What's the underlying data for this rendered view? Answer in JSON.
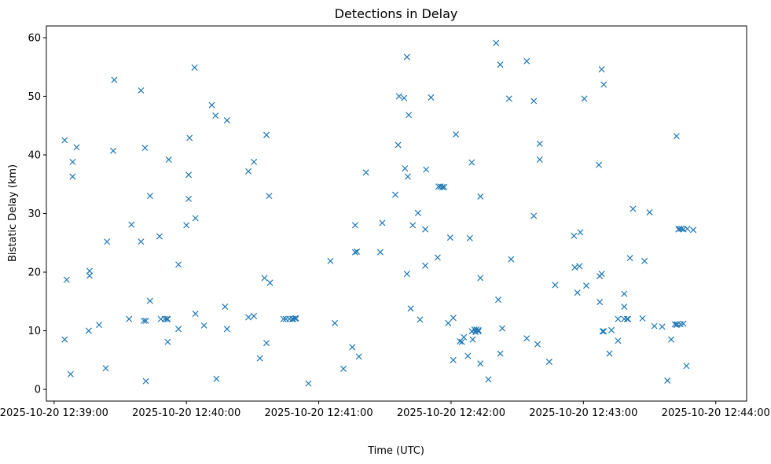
{
  "chart_data": {
    "type": "scatter",
    "title": "Detections in Delay",
    "xlabel": "Time (UTC)",
    "ylabel": "Bistatic Delay (km)",
    "marker": "x",
    "color": "#1f77b4",
    "grid": false,
    "x_unit": "seconds since 2025-10-20 12:39:00",
    "xlim": [
      -3.5,
      314
    ],
    "ylim": [
      -2,
      62
    ],
    "xticks": [
      {
        "value": 0,
        "label": "2025-10-20 12:39:00"
      },
      {
        "value": 60,
        "label": "2025-10-20 12:40:00"
      },
      {
        "value": 120,
        "label": "2025-10-20 12:41:00"
      },
      {
        "value": 180,
        "label": "2025-10-20 12:42:00"
      },
      {
        "value": 240,
        "label": "2025-10-20 12:43:00"
      },
      {
        "value": 300,
        "label": "2025-10-20 12:44:00"
      }
    ],
    "yticks": [
      {
        "value": 0,
        "label": "0"
      },
      {
        "value": 10,
        "label": "10"
      },
      {
        "value": 20,
        "label": "20"
      },
      {
        "value": 30,
        "label": "30"
      },
      {
        "value": 40,
        "label": "40"
      },
      {
        "value": 50,
        "label": "50"
      },
      {
        "value": 60,
        "label": "60"
      }
    ],
    "points": [
      [
        4.8,
        42.5
      ],
      [
        4.8,
        8.5
      ],
      [
        5.7,
        18.7
      ],
      [
        7.5,
        2.6
      ],
      [
        8.4,
        38.8
      ],
      [
        8.4,
        36.3
      ],
      [
        10.2,
        41.3
      ],
      [
        15.7,
        10.0
      ],
      [
        16.1,
        20.2
      ],
      [
        16.1,
        19.4
      ],
      [
        20.4,
        11.0
      ],
      [
        23.4,
        3.6
      ],
      [
        24.0,
        25.2
      ],
      [
        26.8,
        40.7
      ],
      [
        27.3,
        52.8
      ],
      [
        34.0,
        12.0
      ],
      [
        35.1,
        28.1
      ],
      [
        39.4,
        51.0
      ],
      [
        39.4,
        25.2
      ],
      [
        40.7,
        11.7
      ],
      [
        41.2,
        41.2
      ],
      [
        41.6,
        11.7
      ],
      [
        41.6,
        1.4
      ],
      [
        43.5,
        33.0
      ],
      [
        43.5,
        15.1
      ],
      [
        47.8,
        26.1
      ],
      [
        48.4,
        12.0
      ],
      [
        50.2,
        12.0
      ],
      [
        51.1,
        12.0
      ],
      [
        51.5,
        8.1
      ],
      [
        51.5,
        12.0
      ],
      [
        52.0,
        39.2
      ],
      [
        56.4,
        21.3
      ],
      [
        56.4,
        10.3
      ],
      [
        60.0,
        28.0
      ],
      [
        61.0,
        36.6
      ],
      [
        61.0,
        32.5
      ],
      [
        61.4,
        42.9
      ],
      [
        63.7,
        54.9
      ],
      [
        64.1,
        12.9
      ],
      [
        64.1,
        29.2
      ],
      [
        68.0,
        10.9
      ],
      [
        71.5,
        48.5
      ],
      [
        73.2,
        46.7
      ],
      [
        73.6,
        1.8
      ],
      [
        77.5,
        14.1
      ],
      [
        78.4,
        10.3
      ],
      [
        78.4,
        45.9
      ],
      [
        88.1,
        37.2
      ],
      [
        88.1,
        12.3
      ],
      [
        90.6,
        38.8
      ],
      [
        90.6,
        12.5
      ],
      [
        93.3,
        5.3
      ],
      [
        95.4,
        19.0
      ],
      [
        96.3,
        7.9
      ],
      [
        96.3,
        43.4
      ],
      [
        97.5,
        33.0
      ],
      [
        97.9,
        18.2
      ],
      [
        104.0,
        12.0
      ],
      [
        105.1,
        12.0
      ],
      [
        106.7,
        12.0
      ],
      [
        108.0,
        12.0
      ],
      [
        108.4,
        12.0
      ],
      [
        109.3,
        12.1
      ],
      [
        109.7,
        12.1
      ],
      [
        115.3,
        1.0
      ],
      [
        125.3,
        21.9
      ],
      [
        127.3,
        11.3
      ],
      [
        131.2,
        3.5
      ],
      [
        135.2,
        7.2
      ],
      [
        136.5,
        23.4
      ],
      [
        136.5,
        28.0
      ],
      [
        137.3,
        23.5
      ],
      [
        138.2,
        5.6
      ],
      [
        141.4,
        37.0
      ],
      [
        147.9,
        23.4
      ],
      [
        148.8,
        28.4
      ],
      [
        154.7,
        33.2
      ],
      [
        156.0,
        41.7
      ],
      [
        156.4,
        50.0
      ],
      [
        158.7,
        49.7
      ],
      [
        159.1,
        37.7
      ],
      [
        160.0,
        56.7
      ],
      [
        160.0,
        19.7
      ],
      [
        160.4,
        36.3
      ],
      [
        160.8,
        46.8
      ],
      [
        161.7,
        13.8
      ],
      [
        162.6,
        28.0
      ],
      [
        165.0,
        30.1
      ],
      [
        165.9,
        11.9
      ],
      [
        168.3,
        27.3
      ],
      [
        168.3,
        21.1
      ],
      [
        168.7,
        37.5
      ],
      [
        170.9,
        49.8
      ],
      [
        173.9,
        22.5
      ],
      [
        174.3,
        34.6
      ],
      [
        175.2,
        34.6
      ],
      [
        176.1,
        34.5
      ],
      [
        176.9,
        34.5
      ],
      [
        178.7,
        11.3
      ],
      [
        179.6,
        25.9
      ],
      [
        181.0,
        12.2
      ],
      [
        181.0,
        5.0
      ],
      [
        182.2,
        43.5
      ],
      [
        184.0,
        8.2
      ],
      [
        184.9,
        8.1
      ],
      [
        185.8,
        8.9
      ],
      [
        187.6,
        5.7
      ],
      [
        188.5,
        25.8
      ],
      [
        189.4,
        38.7
      ],
      [
        189.4,
        9.9
      ],
      [
        189.8,
        8.5
      ],
      [
        190.6,
        10.2
      ],
      [
        191.1,
        9.8
      ],
      [
        191.5,
        10.2
      ],
      [
        192.4,
        10.1
      ],
      [
        192.4,
        9.9
      ],
      [
        193.3,
        32.9
      ],
      [
        193.3,
        19.0
      ],
      [
        193.3,
        4.4
      ],
      [
        196.9,
        1.7
      ],
      [
        200.4,
        59.1
      ],
      [
        201.4,
        15.3
      ],
      [
        202.3,
        55.4
      ],
      [
        202.3,
        6.1
      ],
      [
        203.2,
        10.4
      ],
      [
        206.3,
        49.6
      ],
      [
        207.2,
        22.2
      ],
      [
        214.3,
        56.0
      ],
      [
        214.3,
        8.7
      ],
      [
        217.5,
        49.2
      ],
      [
        217.5,
        29.6
      ],
      [
        219.2,
        7.7
      ],
      [
        220.2,
        39.2
      ],
      [
        220.2,
        41.9
      ],
      [
        224.5,
        4.7
      ],
      [
        227.2,
        17.8
      ],
      [
        235.7,
        26.2
      ],
      [
        236.1,
        20.8
      ],
      [
        237.3,
        16.5
      ],
      [
        238.2,
        21.0
      ],
      [
        238.6,
        26.8
      ],
      [
        240.4,
        49.6
      ],
      [
        241.3,
        17.7
      ],
      [
        247.0,
        38.3
      ],
      [
        247.4,
        19.3
      ],
      [
        247.4,
        14.9
      ],
      [
        248.3,
        19.7
      ],
      [
        248.3,
        54.6
      ],
      [
        248.7,
        9.9
      ],
      [
        249.2,
        52.0
      ],
      [
        249.2,
        9.9
      ],
      [
        251.8,
        6.1
      ],
      [
        252.7,
        10.1
      ],
      [
        255.7,
        8.3
      ],
      [
        255.7,
        12.0
      ],
      [
        258.5,
        14.1
      ],
      [
        258.5,
        16.3
      ],
      [
        258.5,
        12.0
      ],
      [
        259.8,
        12.0
      ],
      [
        260.2,
        12.0
      ],
      [
        261.1,
        22.4
      ],
      [
        262.5,
        30.8
      ],
      [
        266.8,
        12.1
      ],
      [
        267.7,
        21.9
      ],
      [
        270.0,
        30.2
      ],
      [
        272.2,
        10.8
      ],
      [
        275.7,
        10.7
      ],
      [
        278.1,
        1.5
      ],
      [
        279.8,
        8.5
      ],
      [
        281.5,
        11.1
      ],
      [
        282.2,
        43.2
      ],
      [
        282.2,
        11.0
      ],
      [
        282.6,
        11.1
      ],
      [
        283.1,
        27.3
      ],
      [
        283.5,
        27.4
      ],
      [
        284.0,
        11.1
      ],
      [
        284.4,
        27.4
      ],
      [
        285.3,
        11.2
      ],
      [
        285.3,
        27.3
      ],
      [
        286.7,
        4.0
      ],
      [
        287.1,
        27.4
      ],
      [
        289.8,
        27.2
      ]
    ]
  }
}
